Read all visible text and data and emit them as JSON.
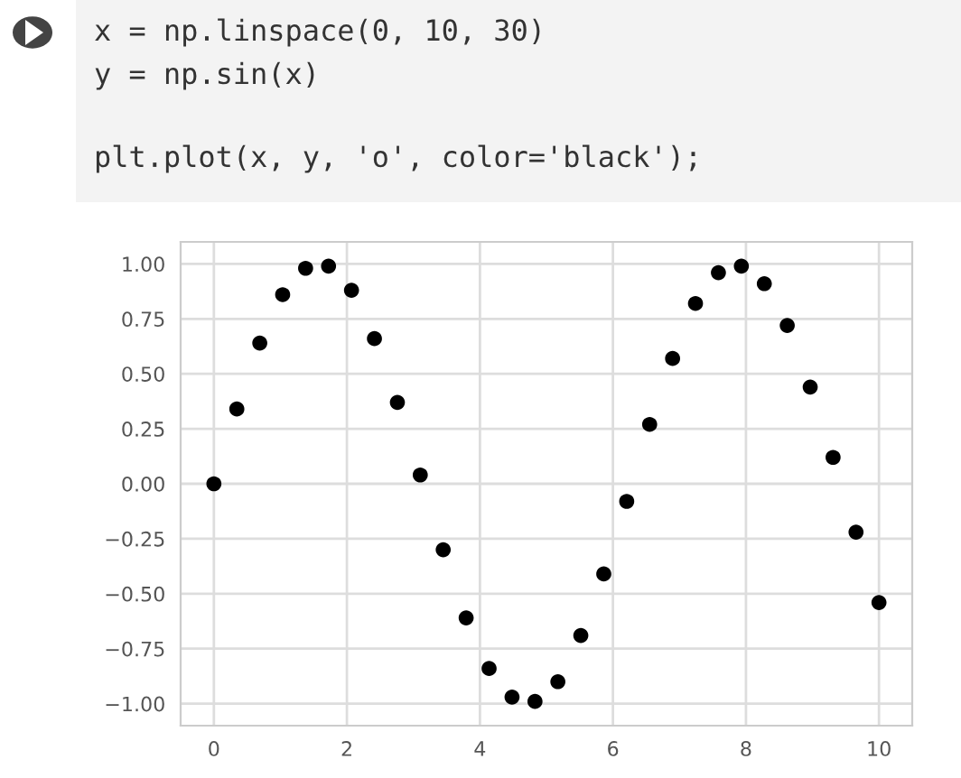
{
  "chart_data": {
    "type": "scatter",
    "annotations": [
      "x = np.linspace(0, 10, 30)",
      "y = np.sin(x)",
      "plt.plot(x, y, 'o', color='black');"
    ],
    "x": [
      0,
      0.345,
      0.69,
      1.034,
      1.379,
      1.724,
      2.069,
      2.414,
      2.759,
      3.103,
      3.448,
      3.793,
      4.138,
      4.483,
      4.828,
      5.172,
      5.517,
      5.862,
      6.207,
      6.552,
      6.897,
      7.241,
      7.586,
      7.931,
      8.276,
      8.621,
      8.966,
      9.31,
      9.655,
      10
    ],
    "series": [
      {
        "color": "#000000",
        "values": [
          0,
          0.34,
          0.64,
          0.86,
          0.98,
          0.99,
          0.88,
          0.66,
          0.37,
          0.04,
          -0.3,
          -0.61,
          -0.84,
          -0.97,
          -0.99,
          -0.9,
          -0.69,
          -0.41,
          -0.08,
          0.27,
          0.57,
          0.82,
          0.96,
          0.99,
          0.91,
          0.72,
          0.44,
          0.12,
          -0.22,
          -0.54
        ]
      }
    ],
    "xlim": [
      -0.5,
      10.5
    ],
    "ylim": [
      -1.1,
      1.1
    ],
    "xticks": [
      0,
      2,
      4,
      6,
      8,
      10
    ],
    "yticks": [
      {
        "value": -1,
        "label": "−1.00"
      },
      {
        "value": -0.75,
        "label": "−0.75"
      },
      {
        "value": -0.5,
        "label": "−0.50"
      },
      {
        "value": -0.25,
        "label": "−0.25"
      },
      {
        "value": 0,
        "label": "0.00"
      },
      {
        "value": 0.25,
        "label": "0.25"
      },
      {
        "value": 0.5,
        "label": "0.50"
      },
      {
        "value": 0.75,
        "label": "0.75"
      },
      {
        "value": 1,
        "label": "1.00"
      }
    ],
    "grid": true,
    "marker": "circle"
  }
}
